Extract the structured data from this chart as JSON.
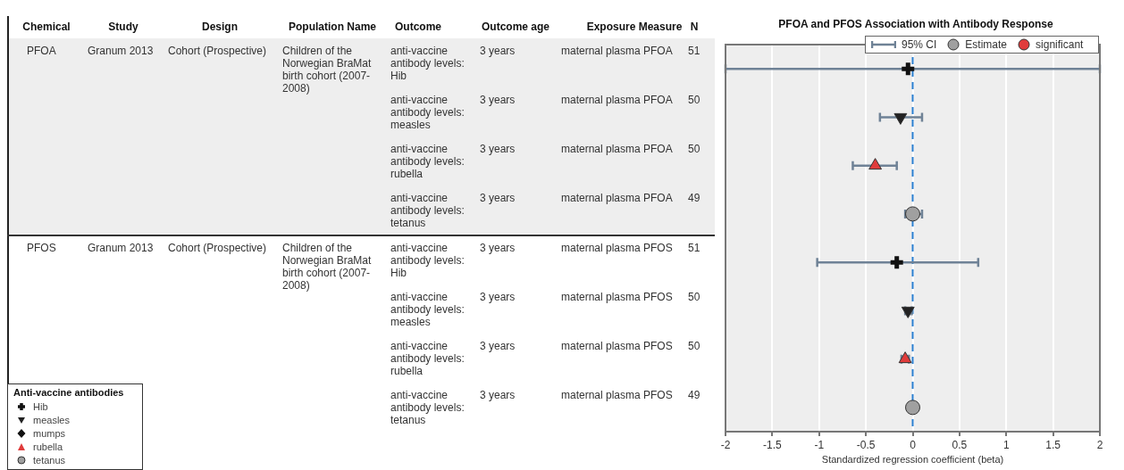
{
  "chart_data": {
    "type": "scatter",
    "orientation": "horizontal",
    "title": "PFOA and PFOS Association with Antibody Response",
    "xlabel": "Standardized regression coefficient (beta)",
    "categories": [
      null,
      null,
      null,
      null,
      null,
      null,
      null,
      null
    ],
    "series": [
      {
        "name": "Hib",
        "marker": "cross",
        "color": "#111111",
        "values": [
          -0.05,
          null,
          null,
          null,
          -0.17,
          null,
          null,
          null
        ],
        "errors": [
          [
            -2,
            2
          ],
          null,
          null,
          null,
          [
            -1.02,
            0.7
          ],
          null,
          null,
          null
        ]
      },
      {
        "name": "measles",
        "marker": "triangle-down",
        "color": "#222222",
        "values": [
          null,
          -0.13,
          null,
          null,
          null,
          -0.05,
          null,
          null
        ],
        "errors": [
          null,
          [
            -0.35,
            0.1
          ],
          null,
          null,
          null,
          [
            -0.08,
            -0.01
          ],
          null,
          null
        ]
      },
      {
        "name": "mumps",
        "marker": "diamond",
        "color": "#111111",
        "values": [
          null,
          null,
          null,
          null,
          null,
          null,
          null,
          null
        ]
      },
      {
        "name": "rubella",
        "marker": "triangle",
        "color": "#e03c3c",
        "values": [
          null,
          null,
          -0.4,
          null,
          null,
          null,
          -0.08,
          null
        ],
        "errors": [
          null,
          null,
          [
            -0.64,
            -0.17
          ],
          null,
          null,
          null,
          [
            -0.12,
            -0.04
          ],
          null
        ]
      },
      {
        "name": "tetanus",
        "marker": "circle",
        "color": "#a0a0a0",
        "values": [
          null,
          null,
          null,
          0,
          null,
          null,
          null,
          0
        ],
        "errors": [
          null,
          null,
          null,
          [
            -0.08,
            0.1
          ],
          null,
          null,
          null,
          null
        ]
      }
    ],
    "xlim": [
      -2,
      2
    ],
    "xticks": [
      -2,
      -1.5,
      -1,
      -0.5,
      0,
      0.5,
      1,
      1.5,
      2
    ],
    "ref_lines": [
      {
        "axis": "x",
        "value": 0,
        "color": "#2a7fd0",
        "line_style": "dashed"
      }
    ],
    "grid": "x",
    "legend": "bottom left",
    "legend_title": "Anti-vaccine antibodies",
    "annotations": [
      "Chemical",
      "Study",
      "Design",
      "Population Name",
      "Outcome",
      "Outcome age",
      "Exposure Measure",
      "N",
      "PFOA",
      "Granum 2013",
      "Cohort (Prospective)",
      "Children of the Norwegian BraMat birth cohort (2007-2008)",
      "PFOS",
      "Granum 2013",
      "Cohort (Prospective)",
      "Children of the Norwegian BraMat birth cohort (2007-2008)",
      "anti-vaccine antibody levels: Hib",
      "3 years",
      "maternal plasma PFOA",
      "51",
      "anti-vaccine antibody levels: measles",
      "3 years",
      "maternal plasma PFOA",
      "50",
      "anti-vaccine antibody levels: rubella",
      "3 years",
      "maternal plasma PFOA",
      "50",
      "anti-vaccine antibody levels: tetanus",
      "3 years",
      "maternal plasma PFOA",
      "49",
      "anti-vaccine antibody levels: Hib",
      "3 years",
      "maternal plasma PFOS",
      "51",
      "anti-vaccine antibody levels: measles",
      "3 years",
      "maternal plasma PFOS",
      "50",
      "anti-vaccine antibody levels: rubella",
      "3 years",
      "maternal plasma PFOS",
      "50",
      "anti-vaccine antibody levels: tetanus",
      "3 years",
      "maternal plasma PFOS",
      "49",
      "95% CI",
      "Estimate",
      "significant"
    ]
  }
}
